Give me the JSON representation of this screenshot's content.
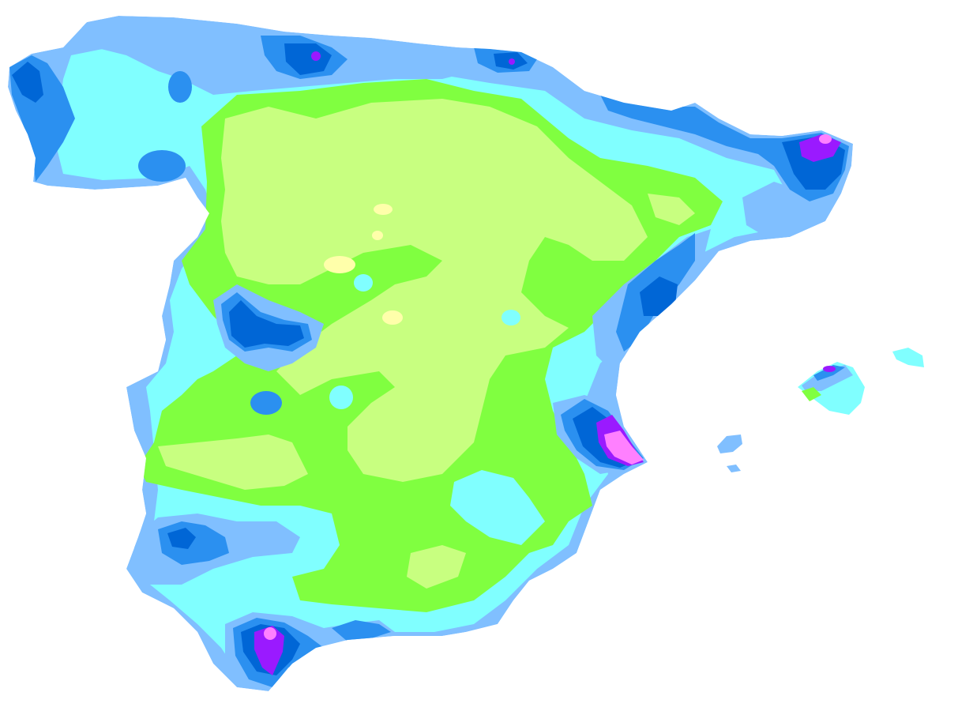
{
  "map": {
    "palette": {
      "level_1": "#ffffaa",
      "level_2": "#c8ff80",
      "level_3": "#80ff40",
      "level_4": "#80ffff",
      "level_5": "#80bfff",
      "level_6": "#2b90f0",
      "level_7": "#0066d6",
      "level_8": "#9a1aff",
      "level_9": "#ff80ff",
      "background": "#ffffff"
    }
  }
}
